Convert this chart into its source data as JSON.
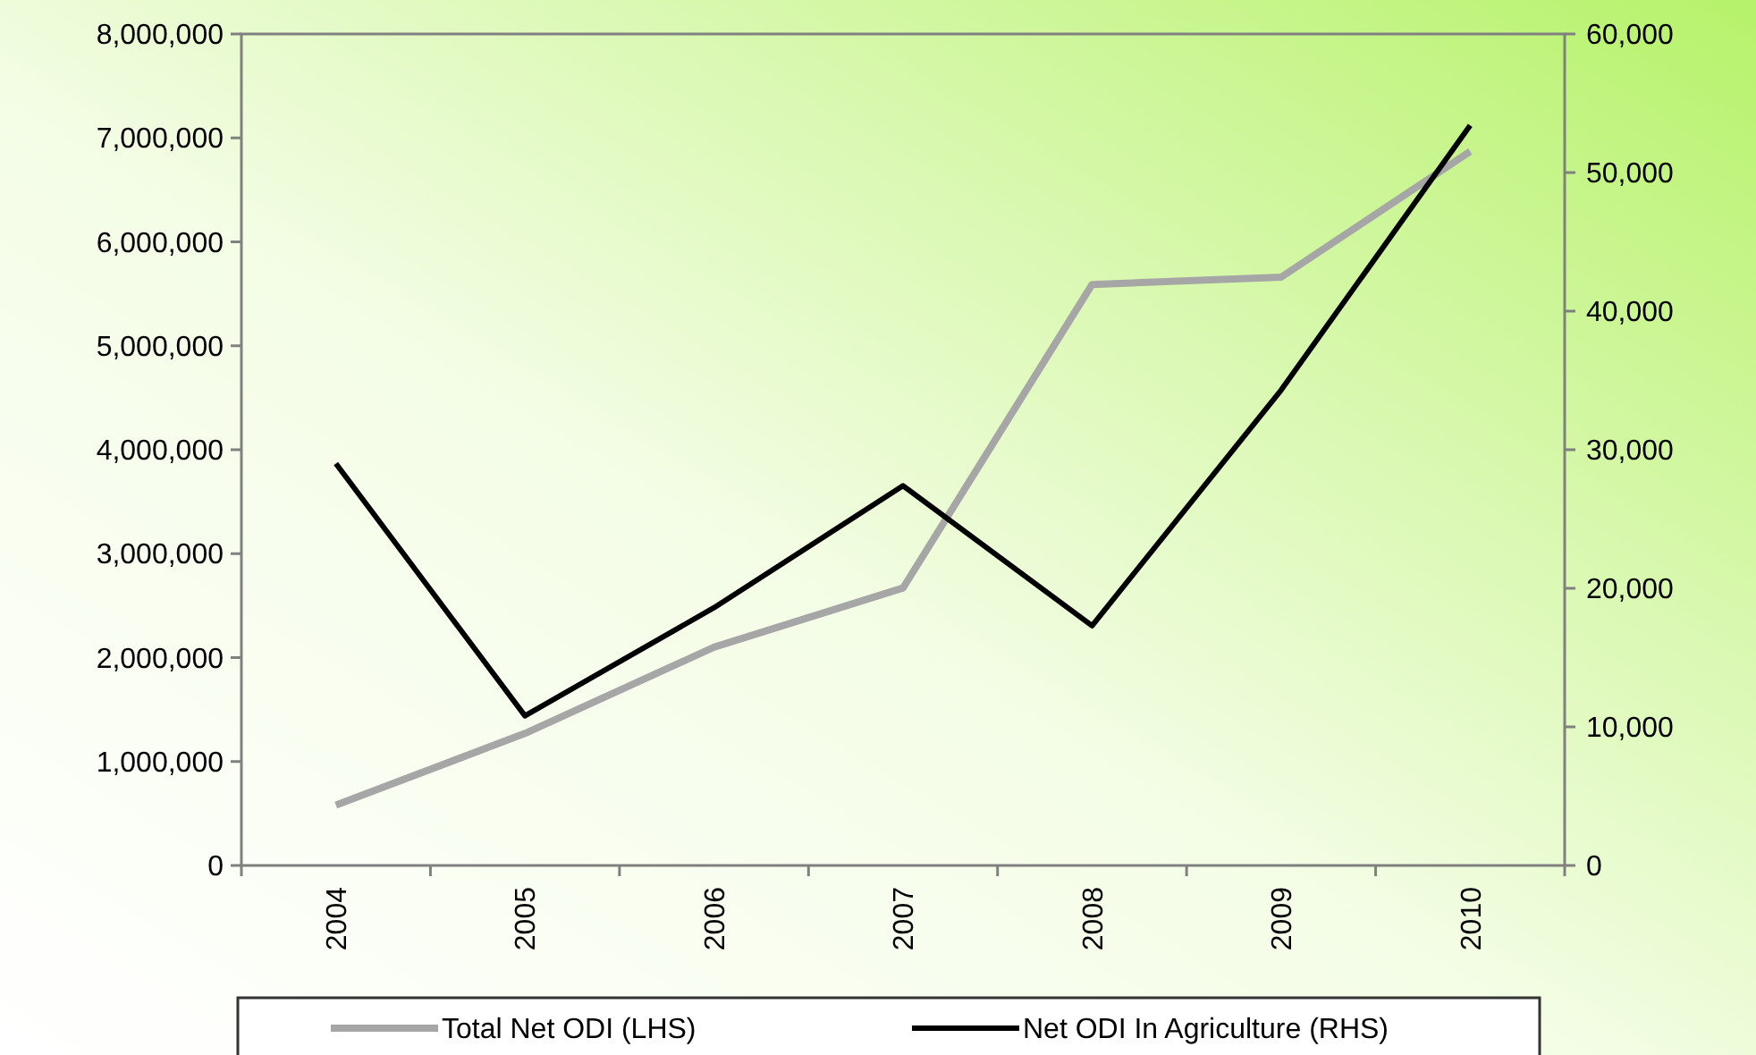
{
  "chart_data": {
    "type": "line",
    "categories": [
      "2004",
      "2005",
      "2006",
      "2007",
      "2008",
      "2009",
      "2010"
    ],
    "series": [
      {
        "name": "Total Net ODI (LHS)",
        "color": "#a6a6a6",
        "values": [
          580000,
          1270000,
          2100000,
          2670000,
          5590000,
          5660000,
          6870000
        ]
      },
      {
        "name": "Net ODI In Agriculture (RHS)",
        "color": "#000000",
        "axis": "y2",
        "values": [
          29000,
          10800,
          18600,
          27400,
          17300,
          34300,
          53400
        ]
      }
    ],
    "ylim": [
      0,
      8000000
    ],
    "yticks": [
      {
        "value": 0,
        "label": "0"
      },
      {
        "value": 1000000,
        "label": "1,000,000"
      },
      {
        "value": 2000000,
        "label": "2,000,000"
      },
      {
        "value": 3000000,
        "label": "3,000,000"
      },
      {
        "value": 4000000,
        "label": "4,000,000"
      },
      {
        "value": 5000000,
        "label": "5,000,000"
      },
      {
        "value": 6000000,
        "label": "6,000,000"
      },
      {
        "value": 7000000,
        "label": "7,000,000"
      },
      {
        "value": 8000000,
        "label": "8,000,000"
      }
    ],
    "y2lim": [
      0,
      60000
    ],
    "y2ticks": [
      {
        "value": 0,
        "label": "0"
      },
      {
        "value": 10000,
        "label": "10,000"
      },
      {
        "value": 20000,
        "label": "20,000"
      },
      {
        "value": 30000,
        "label": "30,000"
      },
      {
        "value": 40000,
        "label": "40,000"
      },
      {
        "value": 50000,
        "label": "50,000"
      },
      {
        "value": 60000,
        "label": "60,000"
      }
    ],
    "grid": false,
    "legend": "bottom",
    "marker": "none",
    "line_style": "solid"
  }
}
